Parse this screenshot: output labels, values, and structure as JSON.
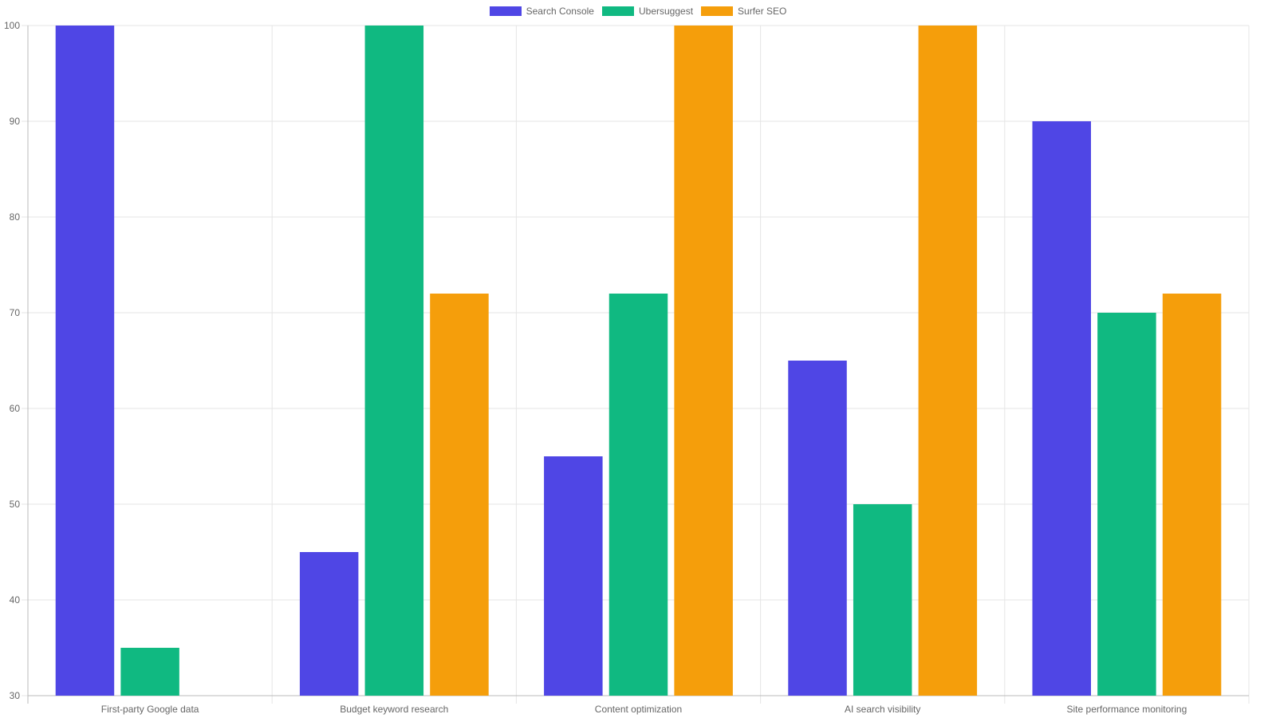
{
  "chart_data": {
    "type": "bar",
    "categories": [
      "First-party Google data",
      "Budget keyword research",
      "Content optimization",
      "AI search visibility",
      "Site performance monitoring"
    ],
    "series": [
      {
        "name": "Search Console",
        "color": "#4f46e5",
        "values": [
          100,
          45,
          55,
          65,
          90
        ]
      },
      {
        "name": "Ubersuggest",
        "color": "#10b981",
        "values": [
          35,
          100,
          72,
          50,
          70
        ]
      },
      {
        "name": "Surfer SEO",
        "color": "#f59e0b",
        "values": [
          30,
          72,
          100,
          100,
          72
        ]
      }
    ],
    "ylim": [
      30,
      100
    ],
    "yticks": [
      30,
      40,
      50,
      60,
      70,
      80,
      90,
      100
    ],
    "grid": true,
    "legend_position": "top-center",
    "title": "",
    "xlabel": "",
    "ylabel": ""
  }
}
